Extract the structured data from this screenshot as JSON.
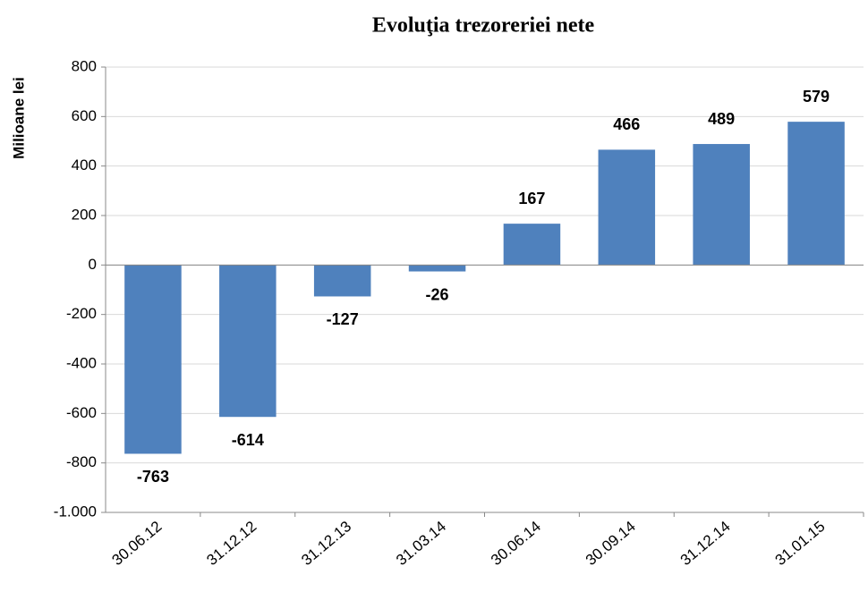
{
  "chart_data": {
    "type": "bar",
    "title": "Evoluţia trezoreriei nete",
    "y_label": "Milioane lei",
    "categories": [
      "30.06.12",
      "31.12.12",
      "31.12.13",
      "31.03.14",
      "30.06.14",
      "30.09.14",
      "31.12.14",
      "31.01.15"
    ],
    "values": [
      -763,
      -614,
      -127,
      -26,
      167,
      466,
      489,
      579
    ],
    "color": "#4f81bd",
    "ylim": [
      -1000,
      800
    ],
    "yticks": [
      {
        "value": -1000,
        "label": "-1.000"
      },
      -800,
      -600,
      -400,
      -200,
      0,
      200,
      400,
      600,
      800
    ],
    "grid": true
  }
}
